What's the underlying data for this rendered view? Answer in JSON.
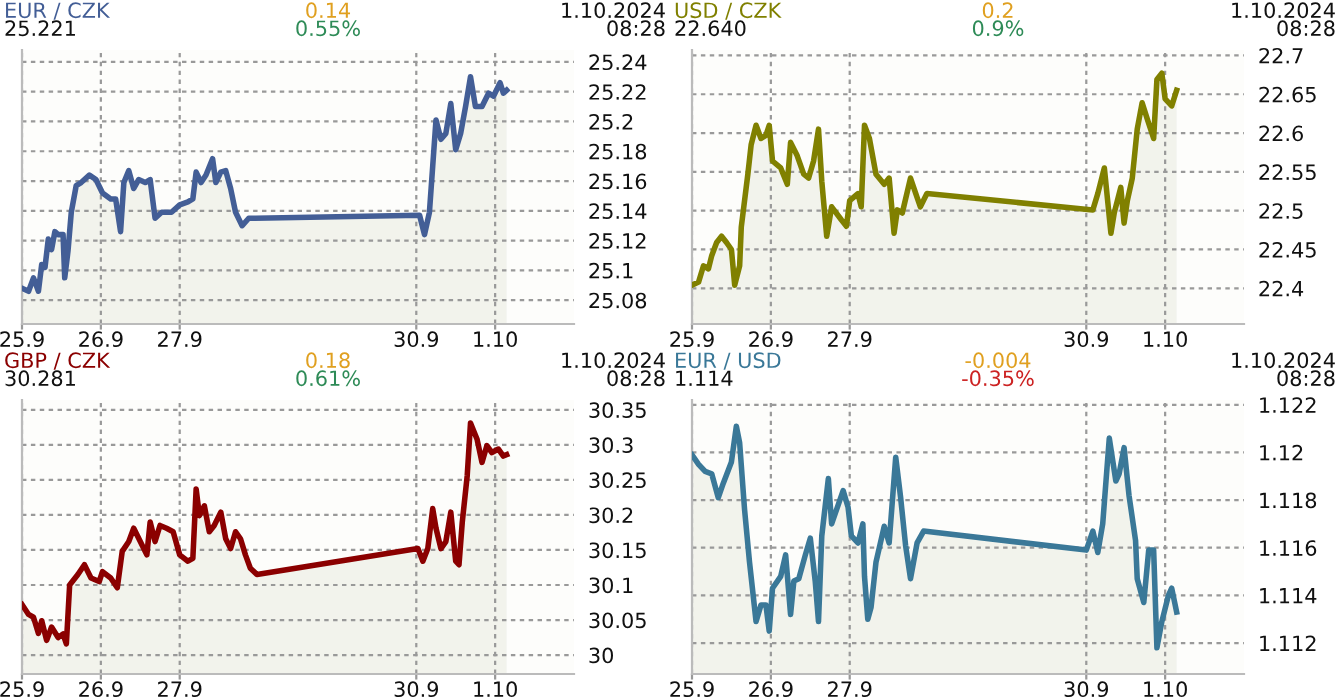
{
  "chart_data": [
    {
      "type": "area",
      "title": "EUR / CZK",
      "subtitle": "25.221",
      "annotations": [
        "0.14",
        "0.55%",
        "1.10.2024",
        "08:28"
      ],
      "grid": true,
      "legend": false,
      "xlim": [
        "2024-09-25",
        "2024-10-02"
      ],
      "xticks": [
        {
          "value": "2024-09-25",
          "label": "25.9"
        },
        {
          "value": "2024-09-26",
          "label": "26.9"
        },
        {
          "value": "2024-09-27",
          "label": "27.9"
        },
        {
          "value": "2024-09-30",
          "label": "30.9"
        },
        {
          "value": "2024-10-01",
          "label": "1.10"
        }
      ],
      "ylim": [
        25.064,
        25.248
      ],
      "yticks": [
        25.08,
        25.1,
        25.12,
        25.14,
        25.16,
        25.18,
        25.2,
        25.22,
        25.24
      ],
      "series": [
        {
          "color": "#435e96",
          "x": [
            "2024-09-25T00:00",
            "2024-09-25T02:00",
            "2024-09-25T03:30",
            "2024-09-25T05:00",
            "2024-09-25T06:00",
            "2024-09-25T07:00",
            "2024-09-25T08:00",
            "2024-09-25T09:00",
            "2024-09-25T10:00",
            "2024-09-25T11:00",
            "2024-09-25T12:30",
            "2024-09-25T13:00",
            "2024-09-25T14:00",
            "2024-09-25T15:00",
            "2024-09-25T16:30",
            "2024-09-25T18:00",
            "2024-09-25T20:30",
            "2024-09-25T22:30",
            "2024-09-26T00:30",
            "2024-09-26T03:00",
            "2024-09-26T04:30",
            "2024-09-26T06:00",
            "2024-09-26T07:00",
            "2024-09-26T08:30",
            "2024-09-26T10:00",
            "2024-09-26T11:30",
            "2024-09-26T13:30",
            "2024-09-26T15:00",
            "2024-09-26T16:30",
            "2024-09-26T18:30",
            "2024-09-26T21:30",
            "2024-09-27T00:00",
            "2024-09-27T02:30",
            "2024-09-27T04:00",
            "2024-09-27T05:00",
            "2024-09-27T06:30",
            "2024-09-27T08:00",
            "2024-09-27T10:00",
            "2024-09-27T11:00",
            "2024-09-27T12:30",
            "2024-09-27T14:00",
            "2024-09-27T15:30",
            "2024-09-27T17:00",
            "2024-09-27T19:00",
            "2024-09-27T21:00",
            "2024-09-27T23:00",
            "2024-09-30T01:00",
            "2024-09-30T02:30",
            "2024-09-30T04:00",
            "2024-09-30T05:00",
            "2024-09-30T06:00",
            "2024-09-30T07:30",
            "2024-09-30T09:00",
            "2024-09-30T10:30",
            "2024-09-30T12:00",
            "2024-09-30T13:30",
            "2024-09-30T15:00",
            "2024-09-30T16:30",
            "2024-09-30T18:00",
            "2024-09-30T20:00",
            "2024-09-30T22:00",
            "2024-09-30T23:30",
            "2024-10-01T01:30",
            "2024-10-01T02:30",
            "2024-10-01T03:30"
          ],
          "values": [
            25.088,
            25.086,
            25.095,
            25.086,
            25.104,
            25.102,
            25.121,
            25.114,
            25.126,
            25.124,
            25.124,
            25.095,
            25.113,
            25.139,
            25.157,
            25.159,
            25.164,
            25.161,
            25.152,
            25.148,
            25.148,
            25.126,
            25.159,
            25.167,
            25.155,
            25.161,
            25.159,
            25.161,
            25.135,
            25.139,
            25.139,
            25.144,
            25.146,
            25.148,
            25.166,
            25.159,
            25.164,
            25.175,
            25.159,
            25.166,
            25.167,
            25.155,
            25.139,
            25.13,
            25.135,
            25.135,
            25.137,
            25.124,
            25.139,
            25.17,
            25.201,
            25.188,
            25.192,
            25.212,
            25.181,
            25.192,
            25.21,
            25.23,
            25.21,
            25.21,
            25.219,
            25.217,
            25.226,
            25.219,
            25.221
          ]
        }
      ]
    },
    {
      "type": "area",
      "title": "USD / CZK",
      "subtitle": "22.640",
      "annotations": [
        "0.2",
        "0.9%",
        "1.10.2024",
        "08:28"
      ],
      "grid": true,
      "legend": false,
      "xlim": [
        "2024-09-25",
        "2024-10-02"
      ],
      "xticks": [
        {
          "value": "2024-09-25",
          "label": "25.9"
        },
        {
          "value": "2024-09-26",
          "label": "26.9"
        },
        {
          "value": "2024-09-27",
          "label": "27.9"
        },
        {
          "value": "2024-09-30",
          "label": "30.9"
        },
        {
          "value": "2024-10-01",
          "label": "1.10"
        }
      ],
      "ylim": [
        22.354,
        22.707
      ],
      "yticks": [
        22.4,
        22.45,
        22.5,
        22.55,
        22.6,
        22.65,
        22.7
      ],
      "series": [
        {
          "color": "#808000",
          "x": [
            "2024-09-25T00:00",
            "2024-09-25T02:00",
            "2024-09-25T03:30",
            "2024-09-25T05:00",
            "2024-09-25T06:00",
            "2024-09-25T07:30",
            "2024-09-25T09:00",
            "2024-09-25T10:30",
            "2024-09-25T12:00",
            "2024-09-25T13:00",
            "2024-09-25T14:30",
            "2024-09-25T15:00",
            "2024-09-25T17:00",
            "2024-09-25T18:00",
            "2024-09-25T19:30",
            "2024-09-25T21:00",
            "2024-09-25T22:30",
            "2024-09-25T23:30",
            "2024-09-26T00:30",
            "2024-09-26T03:00",
            "2024-09-26T05:00",
            "2024-09-26T06:00",
            "2024-09-26T08:00",
            "2024-09-26T10:00",
            "2024-09-26T11:30",
            "2024-09-26T13:00",
            "2024-09-26T14:30",
            "2024-09-26T15:30",
            "2024-09-26T17:00",
            "2024-09-26T18:30",
            "2024-09-26T21:30",
            "2024-09-26T23:00",
            "2024-09-27T00:00",
            "2024-09-27T02:30",
            "2024-09-27T03:30",
            "2024-09-27T04:30",
            "2024-09-27T06:00",
            "2024-09-27T08:00",
            "2024-09-27T10:30",
            "2024-09-27T12:00",
            "2024-09-27T13:30",
            "2024-09-27T14:30",
            "2024-09-27T16:00",
            "2024-09-27T18:30",
            "2024-09-27T20:30",
            "2024-09-27T21:30",
            "2024-09-27T23:30",
            "2024-09-30T02:00",
            "2024-09-30T03:30",
            "2024-09-30T05:30",
            "2024-09-30T07:30",
            "2024-09-30T08:30",
            "2024-09-30T10:30",
            "2024-09-30T11:30",
            "2024-09-30T12:30",
            "2024-09-30T14:00",
            "2024-09-30T15:30",
            "2024-09-30T17:00",
            "2024-09-30T18:30",
            "2024-09-30T20:30",
            "2024-09-30T21:30",
            "2024-09-30T23:00",
            "2024-10-01T00:00",
            "2024-10-01T02:00",
            "2024-10-01T03:30"
          ],
          "values": [
            22.404,
            22.408,
            22.429,
            22.425,
            22.442,
            22.459,
            22.467,
            22.459,
            22.45,
            22.404,
            22.429,
            22.479,
            22.547,
            22.585,
            22.61,
            22.593,
            22.597,
            22.61,
            22.564,
            22.555,
            22.534,
            22.588,
            22.571,
            22.547,
            22.542,
            22.564,
            22.605,
            22.538,
            22.467,
            22.505,
            22.488,
            22.48,
            22.513,
            22.522,
            22.505,
            22.61,
            22.593,
            22.547,
            22.534,
            22.542,
            22.471,
            22.501,
            22.497,
            22.542,
            22.517,
            22.505,
            22.522,
            22.501,
            22.522,
            22.555,
            22.471,
            22.497,
            22.53,
            22.484,
            22.513,
            22.542,
            22.605,
            22.639,
            22.619,
            22.593,
            22.669,
            22.677,
            22.644,
            22.635,
            22.655
          ]
        }
      ]
    },
    {
      "type": "area",
      "title": "GBP / CZK",
      "subtitle": "30.281",
      "annotations": [
        "0.18",
        "0.61%",
        "1.10.2024",
        "08:28"
      ],
      "grid": true,
      "legend": false,
      "xlim": [
        "2024-09-25",
        "2024-10-02"
      ],
      "xticks": [
        {
          "value": "2024-09-25",
          "label": "25.9"
        },
        {
          "value": "2024-09-26",
          "label": "26.9"
        },
        {
          "value": "2024-09-27",
          "label": "27.9"
        },
        {
          "value": "2024-09-30",
          "label": "30.9"
        },
        {
          "value": "2024-10-01",
          "label": "1.10"
        }
      ],
      "ylim": [
        29.973,
        30.364
      ],
      "yticks": [
        30,
        30.05,
        30.1,
        30.15,
        30.2,
        30.25,
        30.3,
        30.35
      ],
      "series": [
        {
          "color": "#8b0000",
          "x": [
            "2024-09-25T00:00",
            "2024-09-25T02:00",
            "2024-09-25T03:30",
            "2024-09-25T05:00",
            "2024-09-25T06:00",
            "2024-09-25T07:30",
            "2024-09-25T09:00",
            "2024-09-25T11:00",
            "2024-09-25T12:30",
            "2024-09-25T13:30",
            "2024-09-25T14:30",
            "2024-09-25T17:00",
            "2024-09-25T19:00",
            "2024-09-25T21:00",
            "2024-09-25T23:30",
            "2024-09-26T00:30",
            "2024-09-26T03:00",
            "2024-09-26T05:00",
            "2024-09-26T06:30",
            "2024-09-26T08:30",
            "2024-09-26T10:00",
            "2024-09-26T12:00",
            "2024-09-26T14:00",
            "2024-09-26T15:00",
            "2024-09-26T16:30",
            "2024-09-26T18:00",
            "2024-09-26T20:00",
            "2024-09-26T22:00",
            "2024-09-27T00:00",
            "2024-09-27T02:30",
            "2024-09-27T04:00",
            "2024-09-27T05:00",
            "2024-09-27T06:00",
            "2024-09-27T07:30",
            "2024-09-27T09:00",
            "2024-09-27T10:30",
            "2024-09-27T12:30",
            "2024-09-27T14:00",
            "2024-09-27T15:30",
            "2024-09-27T17:00",
            "2024-09-27T18:30",
            "2024-09-27T20:00",
            "2024-09-27T21:30",
            "2024-09-27T23:30",
            "2024-09-30T00:30",
            "2024-09-30T02:00",
            "2024-09-30T03:30",
            "2024-09-30T05:00",
            "2024-09-30T06:00",
            "2024-09-30T07:30",
            "2024-09-30T09:00",
            "2024-09-30T10:30",
            "2024-09-30T12:00",
            "2024-09-30T13:00",
            "2024-09-30T14:00",
            "2024-09-30T15:30",
            "2024-09-30T16:30",
            "2024-09-30T18:30",
            "2024-09-30T20:00",
            "2024-09-30T21:30",
            "2024-09-30T23:00",
            "2024-10-01T01:00",
            "2024-10-01T02:30",
            "2024-10-01T03:30"
          ],
          "values": [
            30.072,
            30.058,
            30.054,
            30.031,
            30.049,
            30.021,
            30.04,
            30.025,
            30.03,
            30.016,
            30.1,
            30.115,
            30.129,
            30.11,
            30.105,
            30.119,
            30.11,
            30.096,
            30.148,
            30.162,
            30.181,
            30.162,
            30.143,
            30.19,
            30.162,
            30.185,
            30.181,
            30.176,
            30.143,
            30.134,
            30.138,
            30.237,
            30.199,
            30.213,
            30.176,
            30.185,
            30.204,
            30.166,
            30.152,
            30.176,
            30.166,
            30.143,
            30.124,
            30.115,
            30.152,
            30.134,
            30.152,
            30.209,
            30.181,
            30.152,
            30.162,
            30.204,
            30.134,
            30.129,
            30.19,
            30.256,
            30.331,
            30.308,
            30.275,
            30.299,
            30.289,
            30.294,
            30.284,
            30.286
          ]
        }
      ]
    },
    {
      "type": "area",
      "title": "EUR / USD",
      "subtitle": "1.114",
      "annotations": [
        "-0.004",
        "-0.35%",
        "1.10.2024",
        "08:28"
      ],
      "grid": true,
      "legend": false,
      "xlim": [
        "2024-09-25",
        "2024-10-02"
      ],
      "xticks": [
        {
          "value": "2024-09-25",
          "label": "25.9"
        },
        {
          "value": "2024-09-26",
          "label": "26.9"
        },
        {
          "value": "2024-09-27",
          "label": "27.9"
        },
        {
          "value": "2024-09-30",
          "label": "30.9"
        },
        {
          "value": "2024-10-01",
          "label": "1.10"
        }
      ],
      "ylim": [
        1.1107,
        1.1222
      ],
      "yticks": [
        1.112,
        1.114,
        1.116,
        1.118,
        1.12,
        1.122
      ],
      "series": [
        {
          "color": "#3a7898",
          "x": [
            "2024-09-25T00:00",
            "2024-09-25T02:00",
            "2024-09-25T04:00",
            "2024-09-25T06:00",
            "2024-09-25T08:00",
            "2024-09-25T09:30",
            "2024-09-25T12:00",
            "2024-09-25T13:30",
            "2024-09-25T14:30",
            "2024-09-25T16:00",
            "2024-09-25T17:30",
            "2024-09-25T19:30",
            "2024-09-25T21:00",
            "2024-09-25T22:30",
            "2024-09-25T23:30",
            "2024-09-26T00:30",
            "2024-09-26T03:00",
            "2024-09-26T04:30",
            "2024-09-26T06:00",
            "2024-09-26T07:00",
            "2024-09-26T08:30",
            "2024-09-26T10:30",
            "2024-09-26T12:00",
            "2024-09-26T13:30",
            "2024-09-26T14:30",
            "2024-09-26T15:30",
            "2024-09-26T17:30",
            "2024-09-26T18:30",
            "2024-09-26T20:30",
            "2024-09-26T22:00",
            "2024-09-26T23:30",
            "2024-09-27T00:30",
            "2024-09-27T02:30",
            "2024-09-27T04:00",
            "2024-09-27T04:30",
            "2024-09-27T05:30",
            "2024-09-27T06:30",
            "2024-09-27T08:00",
            "2024-09-27T10:30",
            "2024-09-27T12:00",
            "2024-09-27T14:00",
            "2024-09-27T15:30",
            "2024-09-27T17:00",
            "2024-09-27T18:30",
            "2024-09-27T20:30",
            "2024-09-27T22:30",
            "2024-09-30T00:00",
            "2024-09-30T02:00",
            "2024-09-30T03:30",
            "2024-09-30T05:00",
            "2024-09-30T07:00",
            "2024-09-30T09:00",
            "2024-09-30T10:00",
            "2024-09-30T11:30",
            "2024-09-30T13:00",
            "2024-09-30T15:00",
            "2024-09-30T15:30",
            "2024-09-30T17:30",
            "2024-09-30T19:00",
            "2024-09-30T20:30",
            "2024-09-30T21:30",
            "2024-09-30T23:00",
            "2024-10-01T01:00",
            "2024-10-01T02:00",
            "2024-10-01T03:30"
          ],
          "values": [
            1.1199,
            1.1195,
            1.1192,
            1.1191,
            1.1181,
            1.1187,
            1.1196,
            1.1211,
            1.1204,
            1.1176,
            1.1154,
            1.1129,
            1.1136,
            1.1136,
            1.1125,
            1.1143,
            1.1148,
            1.1157,
            1.1132,
            1.1146,
            1.1147,
            1.1157,
            1.1164,
            1.1146,
            1.1129,
            1.1165,
            1.1189,
            1.117,
            1.1178,
            1.1184,
            1.1177,
            1.1165,
            1.1162,
            1.117,
            1.1148,
            1.113,
            1.1135,
            1.1154,
            1.1169,
            1.1162,
            1.1198,
            1.1181,
            1.1161,
            1.1147,
            1.1162,
            1.1167,
            1.1159,
            1.1167,
            1.1158,
            1.117,
            1.1206,
            1.1188,
            1.1191,
            1.1202,
            1.1182,
            1.1163,
            1.1147,
            1.1137,
            1.1159,
            1.1159,
            1.1118,
            1.1129,
            1.114,
            1.1143,
            1.1133
          ]
        }
      ]
    }
  ]
}
